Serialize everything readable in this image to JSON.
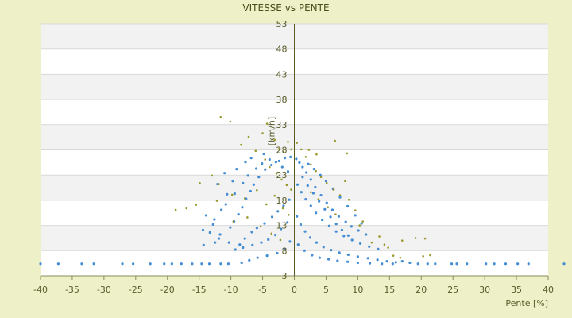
{
  "chart_data": {
    "type": "scatter",
    "title": "VITESSE vs PENTE",
    "xlabel": "Pente [%]",
    "ylabel": "[km/h]",
    "xlim": [
      -40,
      40
    ],
    "ylim": [
      3,
      53
    ],
    "x_ticks": [
      "-40",
      "-35",
      "-30",
      "-25",
      "-20",
      "-15",
      "-10",
      "-5",
      "0",
      "5",
      "10",
      "15",
      "20",
      "25",
      "30",
      "35",
      "40"
    ],
    "y_ticks": [
      "3",
      "8",
      "13",
      "18",
      "23",
      "28",
      "33",
      "38",
      "43",
      "48",
      "53"
    ],
    "grid": true,
    "band_fill": "#f2f2f2",
    "series": [
      {
        "color": "#3a87d2",
        "points": [
          [
            -40,
            5.4
          ],
          [
            -37.2,
            5.4
          ],
          [
            -33.5,
            5.4
          ],
          [
            -31.6,
            5.4
          ],
          [
            -27.1,
            5.4
          ],
          [
            -25.4,
            5.4
          ],
          [
            -22.7,
            5.4
          ],
          [
            -20.5,
            5.4
          ],
          [
            -19.3,
            5.4
          ],
          [
            -17.8,
            5.4
          ],
          [
            -16.1,
            5.4
          ],
          [
            -14.6,
            5.4
          ],
          [
            -13.4,
            5.4
          ],
          [
            -11.6,
            5.4
          ],
          [
            -10.4,
            5.4
          ],
          [
            -8.3,
            5.6
          ],
          [
            -7.1,
            6.1
          ],
          [
            -5.8,
            6.6
          ],
          [
            -4.3,
            7.0
          ],
          [
            -2.7,
            7.5
          ],
          [
            -1.5,
            8.3
          ],
          [
            -0.7,
            9.8
          ],
          [
            -14.3,
            9.1
          ],
          [
            -12.5,
            9.6
          ],
          [
            -11.7,
            11.2
          ],
          [
            -10.1,
            12.6
          ],
          [
            -9.5,
            13.8
          ],
          [
            -8.8,
            15.2
          ],
          [
            -8.2,
            16.6
          ],
          [
            -7.6,
            18.3
          ],
          [
            -6.9,
            19.8
          ],
          [
            -6.4,
            21.1
          ],
          [
            -5.6,
            22.6
          ],
          [
            -4.6,
            24.1
          ],
          [
            -3.6,
            25.0
          ],
          [
            -2.4,
            25.8
          ],
          [
            -1.5,
            26.4
          ],
          [
            -0.6,
            26.6
          ],
          [
            -10.8,
            17.2
          ],
          [
            -9.4,
            19.3
          ],
          [
            -8.1,
            21.4
          ],
          [
            -7.3,
            22.9
          ],
          [
            -6.0,
            24.3
          ],
          [
            -5.1,
            25.3
          ],
          [
            -3.9,
            26.1
          ],
          [
            -2.9,
            25.6
          ],
          [
            -1.9,
            24.6
          ],
          [
            -1.0,
            23.7
          ],
          [
            -8.6,
            9.2
          ],
          [
            -7.8,
            10.4
          ],
          [
            -6.7,
            11.7
          ],
          [
            -5.9,
            12.5
          ],
          [
            -4.7,
            13.4
          ],
          [
            -3.5,
            14.7
          ],
          [
            -2.6,
            15.8
          ],
          [
            -1.7,
            16.9
          ],
          [
            -0.8,
            18.1
          ],
          [
            -9.3,
            8.2
          ],
          [
            -8.1,
            8.6
          ],
          [
            -6.6,
            9.1
          ],
          [
            -5.2,
            9.6
          ],
          [
            -4.1,
            10.2
          ],
          [
            -3.0,
            11.1
          ],
          [
            -2.1,
            12.3
          ],
          [
            -1.1,
            13.6
          ],
          [
            -12.6,
            14.2
          ],
          [
            -11.5,
            16.1
          ],
          [
            -10.6,
            19.2
          ],
          [
            -9.7,
            21.8
          ],
          [
            -12.1,
            21.2
          ],
          [
            -11.0,
            23.4
          ],
          [
            -9.1,
            24.2
          ],
          [
            -7.7,
            25.6
          ],
          [
            -6.8,
            26.4
          ],
          [
            -4.8,
            27.2
          ],
          [
            -13.3,
            11.6
          ],
          [
            -12.8,
            13.2
          ],
          [
            -13.9,
            15.0
          ],
          [
            -14.4,
            12.1
          ],
          [
            -11.9,
            10.4
          ],
          [
            -10.3,
            9.6
          ],
          [
            0.3,
            26.2
          ],
          [
            0.8,
            25.5
          ],
          [
            1.3,
            24.6
          ],
          [
            1.9,
            23.5
          ],
          [
            2.6,
            22.1
          ],
          [
            3.3,
            20.6
          ],
          [
            4.2,
            19.0
          ],
          [
            5.1,
            17.5
          ],
          [
            6.0,
            16.1
          ],
          [
            7.0,
            14.8
          ],
          [
            8.1,
            13.7
          ],
          [
            9.0,
            12.8
          ],
          [
            10.1,
            12.0
          ],
          [
            11.3,
            11.2
          ],
          [
            0.5,
            21.1
          ],
          [
            1.1,
            19.6
          ],
          [
            1.8,
            18.2
          ],
          [
            2.6,
            16.9
          ],
          [
            3.4,
            15.5
          ],
          [
            4.4,
            14.1
          ],
          [
            5.5,
            12.9
          ],
          [
            6.6,
            11.8
          ],
          [
            7.8,
            10.9
          ],
          [
            9.1,
            10.1
          ],
          [
            10.4,
            9.4
          ],
          [
            11.8,
            8.8
          ],
          [
            13.2,
            8.3
          ],
          [
            0.4,
            14.8
          ],
          [
            1.0,
            13.2
          ],
          [
            1.7,
            11.8
          ],
          [
            2.5,
            10.6
          ],
          [
            3.5,
            9.6
          ],
          [
            4.6,
            8.7
          ],
          [
            5.8,
            8.1
          ],
          [
            7.1,
            7.6
          ],
          [
            8.5,
            7.2
          ],
          [
            10.0,
            6.8
          ],
          [
            11.6,
            6.5
          ],
          [
            13.1,
            6.2
          ],
          [
            14.6,
            5.9
          ],
          [
            16.0,
            5.7
          ],
          [
            0.6,
            9.2
          ],
          [
            1.6,
            8.0
          ],
          [
            2.8,
            7.1
          ],
          [
            4.0,
            6.6
          ],
          [
            5.4,
            6.3
          ],
          [
            6.8,
            6.0
          ],
          [
            8.4,
            5.8
          ],
          [
            10.0,
            5.6
          ],
          [
            11.9,
            5.5
          ],
          [
            13.8,
            5.4
          ],
          [
            15.5,
            5.4
          ],
          [
            1.3,
            22.6
          ],
          [
            2.1,
            20.9
          ],
          [
            3.0,
            19.4
          ],
          [
            3.9,
            17.8
          ],
          [
            4.8,
            16.2
          ],
          [
            5.7,
            14.7
          ],
          [
            6.6,
            13.3
          ],
          [
            7.5,
            12.1
          ],
          [
            8.5,
            11.0
          ],
          [
            2.2,
            25.2
          ],
          [
            3.1,
            24.2
          ],
          [
            4.1,
            23.0
          ],
          [
            5.0,
            21.8
          ],
          [
            6.1,
            20.3
          ],
          [
            7.2,
            18.6
          ],
          [
            8.4,
            16.8
          ],
          [
            9.6,
            15.0
          ],
          [
            10.6,
            13.4
          ],
          [
            17.0,
            5.9
          ],
          [
            18.2,
            5.6
          ],
          [
            19.5,
            5.4
          ],
          [
            21.0,
            5.4
          ],
          [
            22.2,
            5.4
          ],
          [
            24.8,
            5.4
          ],
          [
            25.6,
            5.4
          ],
          [
            27.2,
            5.4
          ],
          [
            30.2,
            5.4
          ],
          [
            31.5,
            5.4
          ],
          [
            33.3,
            5.4
          ],
          [
            35.2,
            5.4
          ],
          [
            36.9,
            5.4
          ],
          [
            42.5,
            5.4
          ]
        ]
      },
      {
        "color": "#8e8e16",
        "points": [
          [
            -11.6,
            34.5
          ],
          [
            -10.1,
            33.6
          ],
          [
            -8.4,
            29.0
          ],
          [
            -7.2,
            30.6
          ],
          [
            -6.1,
            27.8
          ],
          [
            -5.0,
            31.3
          ],
          [
            -4.3,
            33.2
          ],
          [
            -3.1,
            30.0
          ],
          [
            -2.4,
            28.2
          ],
          [
            -1.7,
            27.6
          ],
          [
            -1.0,
            29.6
          ],
          [
            -0.5,
            28.1
          ],
          [
            -4.6,
            26.1
          ],
          [
            -3.9,
            24.6
          ],
          [
            -2.8,
            23.3
          ],
          [
            -2.0,
            22.1
          ],
          [
            -1.2,
            21.0
          ],
          [
            -0.5,
            20.1
          ],
          [
            -11.9,
            21.2
          ],
          [
            -9.8,
            19.1
          ],
          [
            -7.8,
            18.4
          ],
          [
            -5.9,
            20.0
          ],
          [
            -4.4,
            17.2
          ],
          [
            -3.1,
            18.9
          ],
          [
            -1.8,
            16.4
          ],
          [
            -0.9,
            15.1
          ],
          [
            -18.7,
            16.1
          ],
          [
            -17.0,
            16.4
          ],
          [
            -15.5,
            17.1
          ],
          [
            -14.9,
            21.4
          ],
          [
            -13.0,
            22.9
          ],
          [
            -12.2,
            17.9
          ],
          [
            -9.6,
            13.8
          ],
          [
            -7.4,
            14.6
          ],
          [
            -5.3,
            12.8
          ],
          [
            -3.6,
            11.4
          ],
          [
            -2.2,
            10.1
          ],
          [
            0.4,
            29.4
          ],
          [
            1.1,
            28.1
          ],
          [
            1.8,
            26.6
          ],
          [
            2.6,
            25.1
          ],
          [
            3.4,
            23.8
          ],
          [
            4.2,
            22.6
          ],
          [
            5.1,
            21.4
          ],
          [
            6.2,
            20.1
          ],
          [
            7.2,
            19.0
          ],
          [
            8.0,
            21.8
          ],
          [
            8.6,
            18.1
          ],
          [
            9.6,
            16.0
          ],
          [
            10.8,
            13.8
          ],
          [
            2.3,
            28.0
          ],
          [
            3.5,
            27.1
          ],
          [
            6.4,
            29.8
          ],
          [
            8.3,
            27.3
          ],
          [
            10.3,
            13.0
          ],
          [
            12.2,
            9.6
          ],
          [
            13.4,
            10.8
          ],
          [
            14.2,
            9.2
          ],
          [
            14.8,
            8.6
          ],
          [
            17.0,
            10.0
          ],
          [
            19.1,
            10.5
          ],
          [
            20.6,
            10.4
          ],
          [
            21.4,
            7.1
          ],
          [
            20.3,
            6.9
          ],
          [
            15.6,
            7.0
          ],
          [
            16.7,
            6.6
          ],
          [
            2.6,
            19.6
          ],
          [
            3.8,
            18.2
          ],
          [
            5.3,
            16.6
          ],
          [
            6.5,
            15.2
          ]
        ]
      }
    ]
  }
}
